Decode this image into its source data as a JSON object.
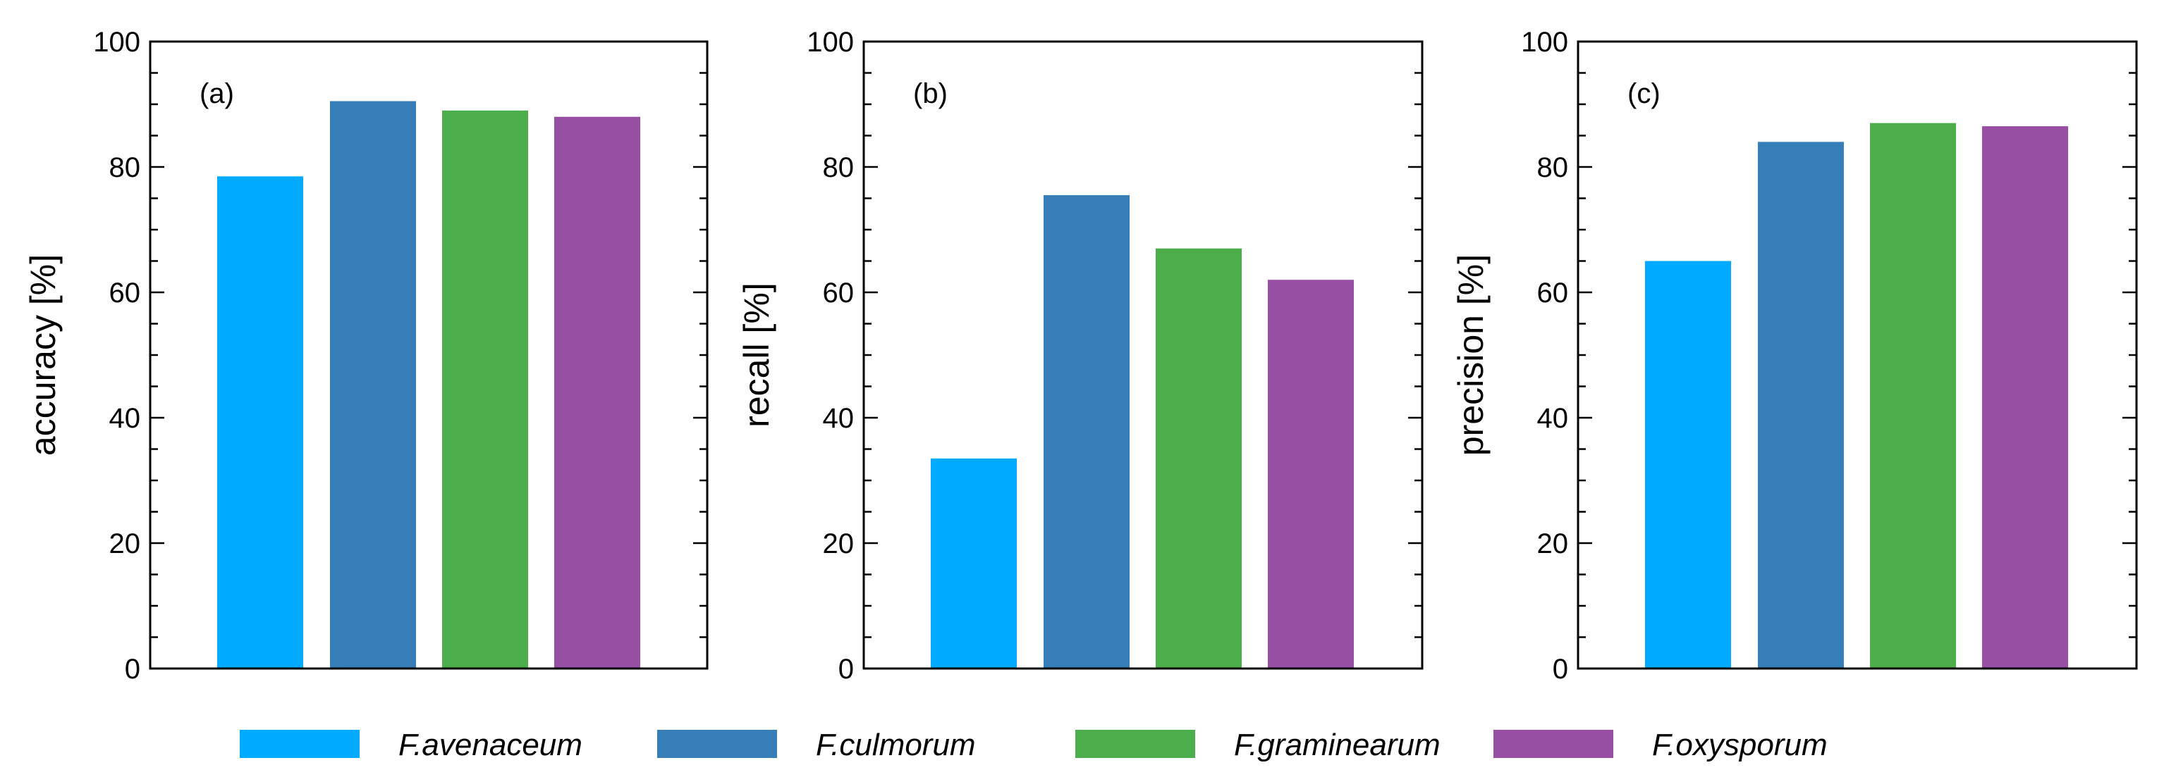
{
  "chart_data": [
    {
      "type": "bar",
      "panel_label": "(a)",
      "ylabel": "accuracy [%]",
      "ylim": [
        0,
        100
      ],
      "yticks": [
        "0",
        "20",
        "40",
        "60",
        "80",
        "100"
      ],
      "categories": [
        "F.avenaceum",
        "F.culmorum",
        "F.graminearum",
        "F.oxysporum"
      ],
      "values": [
        78.5,
        90.5,
        89.0,
        88.0
      ]
    },
    {
      "type": "bar",
      "panel_label": "(b)",
      "ylabel": "recall [%]",
      "ylim": [
        0,
        100
      ],
      "yticks": [
        "0",
        "20",
        "40",
        "60",
        "80",
        "100"
      ],
      "categories": [
        "F.avenaceum",
        "F.culmorum",
        "F.graminearum",
        "F.oxysporum"
      ],
      "values": [
        33.5,
        75.5,
        67.0,
        62.0
      ]
    },
    {
      "type": "bar",
      "panel_label": "(c)",
      "ylabel": "precision [%]",
      "ylim": [
        0,
        100
      ],
      "yticks": [
        "0",
        "20",
        "40",
        "60",
        "80",
        "100"
      ],
      "categories": [
        "F.avenaceum",
        "F.culmorum",
        "F.graminearum",
        "F.oxysporum"
      ],
      "values": [
        65.0,
        84.0,
        87.0,
        86.5
      ]
    }
  ],
  "legend": {
    "placement": "bottom",
    "items": [
      {
        "label": "F.avenaceum",
        "color": "#00aaff"
      },
      {
        "label": "F.culmorum",
        "color": "#357eb8"
      },
      {
        "label": "F.graminearum",
        "color": "#4bae4a"
      },
      {
        "label": "F.oxysporum",
        "color": "#964fa2"
      }
    ]
  }
}
